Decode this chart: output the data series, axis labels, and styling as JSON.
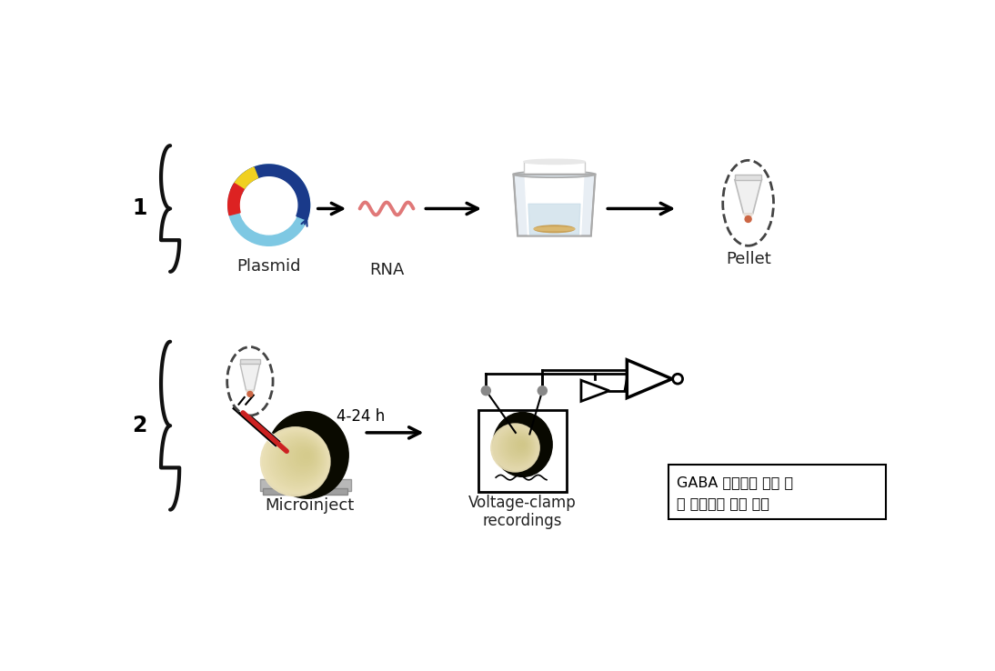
{
  "background_color": "#ffffff",
  "text_box_line1": "GABA 수용체의 세포 발",
  "text_box_line2": "및 효능평가 방법 개요",
  "label_plasmid": "Plasmid",
  "label_rna": "RNA",
  "label_pellet": "Pellet",
  "label_microinject": "Microinject",
  "label_voltage": "Voltage-clamp\nrecordings",
  "label_time": "4-24 h",
  "step1": "1",
  "step2": "2",
  "arrow_color": "#111111",
  "dashed_color": "#444444",
  "brace_color": "#111111",
  "plasmid_dark_blue": "#1a3a8a",
  "plasmid_light_blue": "#7ec8e3",
  "plasmid_yellow": "#f0d020",
  "plasmid_red": "#dd2222",
  "rna_color": "#e07878",
  "oocyte_dark": "#111100",
  "oocyte_cream": "#e8e0a0",
  "needle_red": "#cc2222",
  "electrode_gray": "#888888",
  "stage_gray": "#b0b0b0",
  "tube_white": "#f0f0f0",
  "pellet_dot": "#cc6644",
  "text_color": "#222222"
}
